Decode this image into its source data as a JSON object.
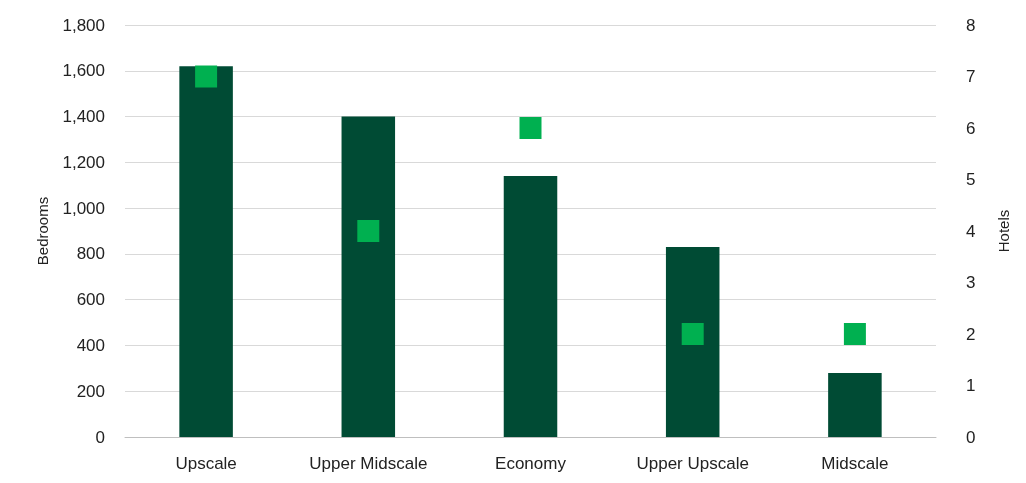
{
  "chart_data": {
    "type": "bar",
    "ylabel": "Bedrooms",
    "y2label": "Hotels",
    "categories": [
      "Upscale",
      "Upper Midscale",
      "Economy",
      "Upper Upscale",
      "Midscale"
    ],
    "series": [
      {
        "color": "#004b34",
        "values": [
          1620,
          1400,
          1140,
          830,
          280
        ]
      },
      {
        "type": "scatter",
        "axis": "y2",
        "color": "#00b050",
        "marker": "square",
        "values": [
          7,
          4,
          6,
          2,
          2
        ]
      }
    ],
    "ylim": [
      0,
      1800
    ],
    "yticks": [
      {
        "value": 0,
        "label": "0"
      },
      {
        "value": 200,
        "label": "200"
      },
      {
        "value": 400,
        "label": "400"
      },
      {
        "value": 600,
        "label": "600"
      },
      {
        "value": 800,
        "label": "800"
      },
      {
        "value": 1000,
        "label": "1,000"
      },
      {
        "value": 1200,
        "label": "1,200"
      },
      {
        "value": 1400,
        "label": "1,400"
      },
      {
        "value": 1600,
        "label": "1,600"
      },
      {
        "value": 1800,
        "label": "1,800"
      }
    ],
    "y2lim": [
      0,
      8
    ],
    "y2ticks": [
      0,
      1,
      2,
      3,
      4,
      5,
      6,
      7,
      8
    ],
    "grid": "y"
  }
}
